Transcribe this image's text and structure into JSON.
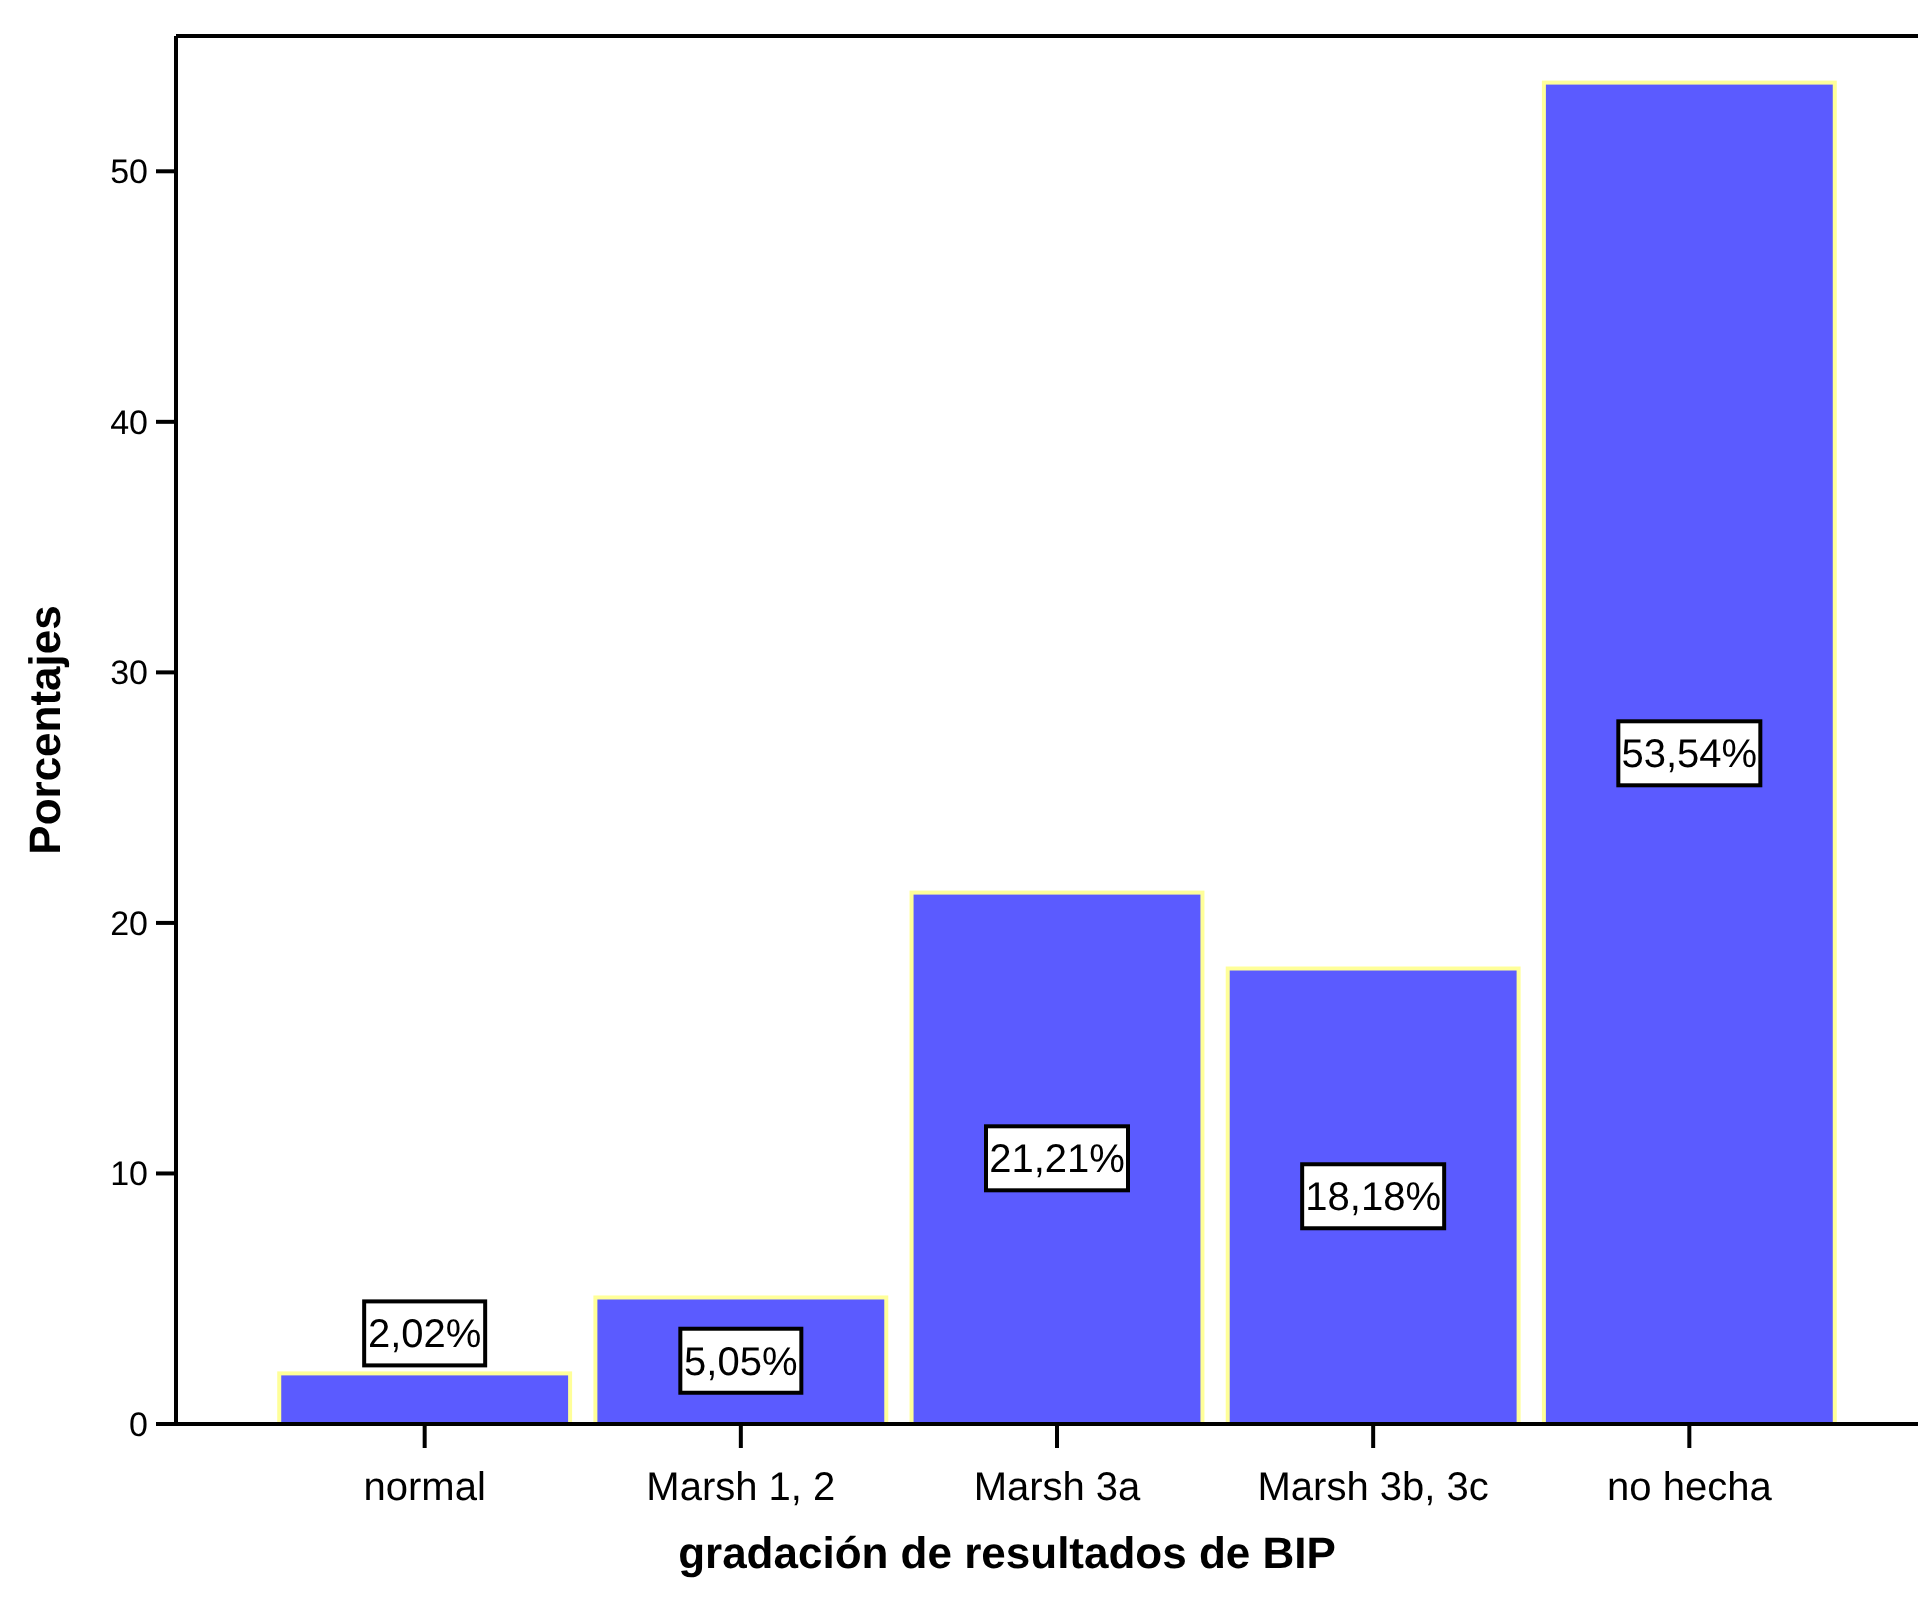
{
  "chart_data": {
    "type": "bar",
    "xlabel": "gradación de resultados de BIP",
    "ylabel": "Porcentajes",
    "categories": [
      "normal",
      "Marsh 1, 2",
      "Marsh 3a",
      "Marsh 3b, 3c",
      "no hecha"
    ],
    "values": [
      2.02,
      5.05,
      21.21,
      18.18,
      53.54
    ],
    "value_labels": [
      "2,02%",
      "5,05%",
      "21,21%",
      "18,18%",
      "53,54%"
    ],
    "color": "#5b5bff",
    "ylim": [
      0,
      55.4
    ],
    "yticks": [
      0,
      10,
      20,
      30,
      40,
      50
    ],
    "grid": false
  }
}
